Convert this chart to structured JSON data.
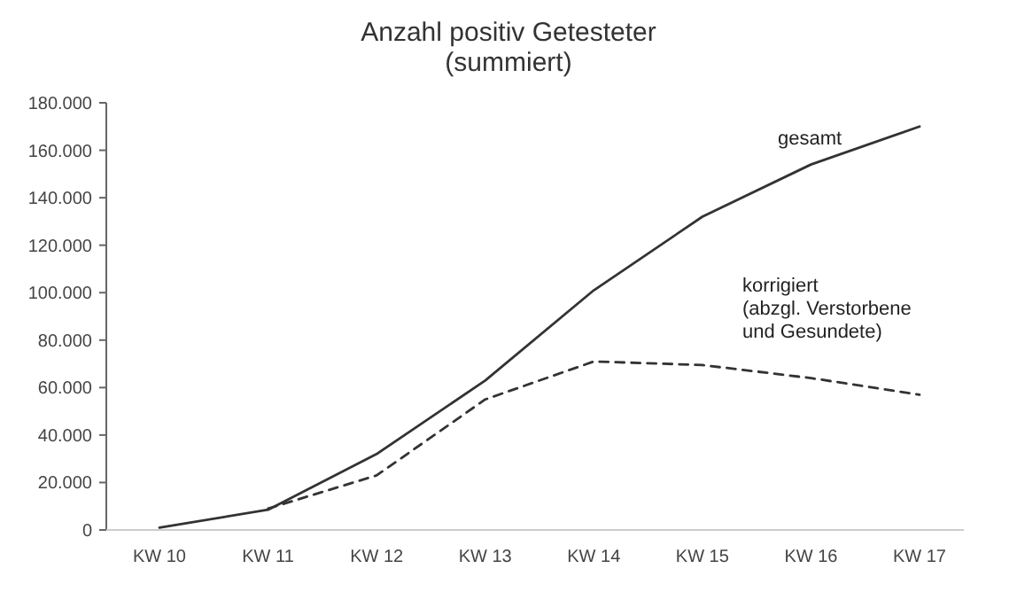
{
  "chart_data": {
    "type": "line",
    "title": "Anzahl positiv Getesteter\n(summiert)",
    "categories": [
      "KW 10",
      "KW 11",
      "KW 12",
      "KW 13",
      "KW 14",
      "KW 15",
      "KW 16",
      "KW 17"
    ],
    "series": [
      {
        "name": "gesamt",
        "color": "#333333",
        "line_style": "solid",
        "values": [
          1000,
          8500,
          32000,
          63000,
          101000,
          132000,
          154000,
          170000
        ]
      },
      {
        "name": "korrigiert\n(abzgl. Verstorbene\nund Gesundete)",
        "color": "#333333",
        "line_style": "dashed",
        "values": [
          null,
          9000,
          23000,
          55000,
          71000,
          69500,
          64000,
          57000
        ]
      }
    ],
    "ylim": [
      0,
      180000
    ],
    "yticks": [
      {
        "value": 0,
        "label": "0"
      },
      {
        "value": 20000,
        "label": "20.000"
      },
      {
        "value": 40000,
        "label": "40.000"
      },
      {
        "value": 60000,
        "label": "60.000"
      },
      {
        "value": 80000,
        "label": "80.000"
      },
      {
        "value": 100000,
        "label": "100.000"
      },
      {
        "value": 120000,
        "label": "120.000"
      },
      {
        "value": 140000,
        "label": "140.000"
      },
      {
        "value": 160000,
        "label": "160.000"
      },
      {
        "value": 180000,
        "label": "180.000"
      }
    ],
    "grid": false,
    "legend": false,
    "marker": "none"
  }
}
